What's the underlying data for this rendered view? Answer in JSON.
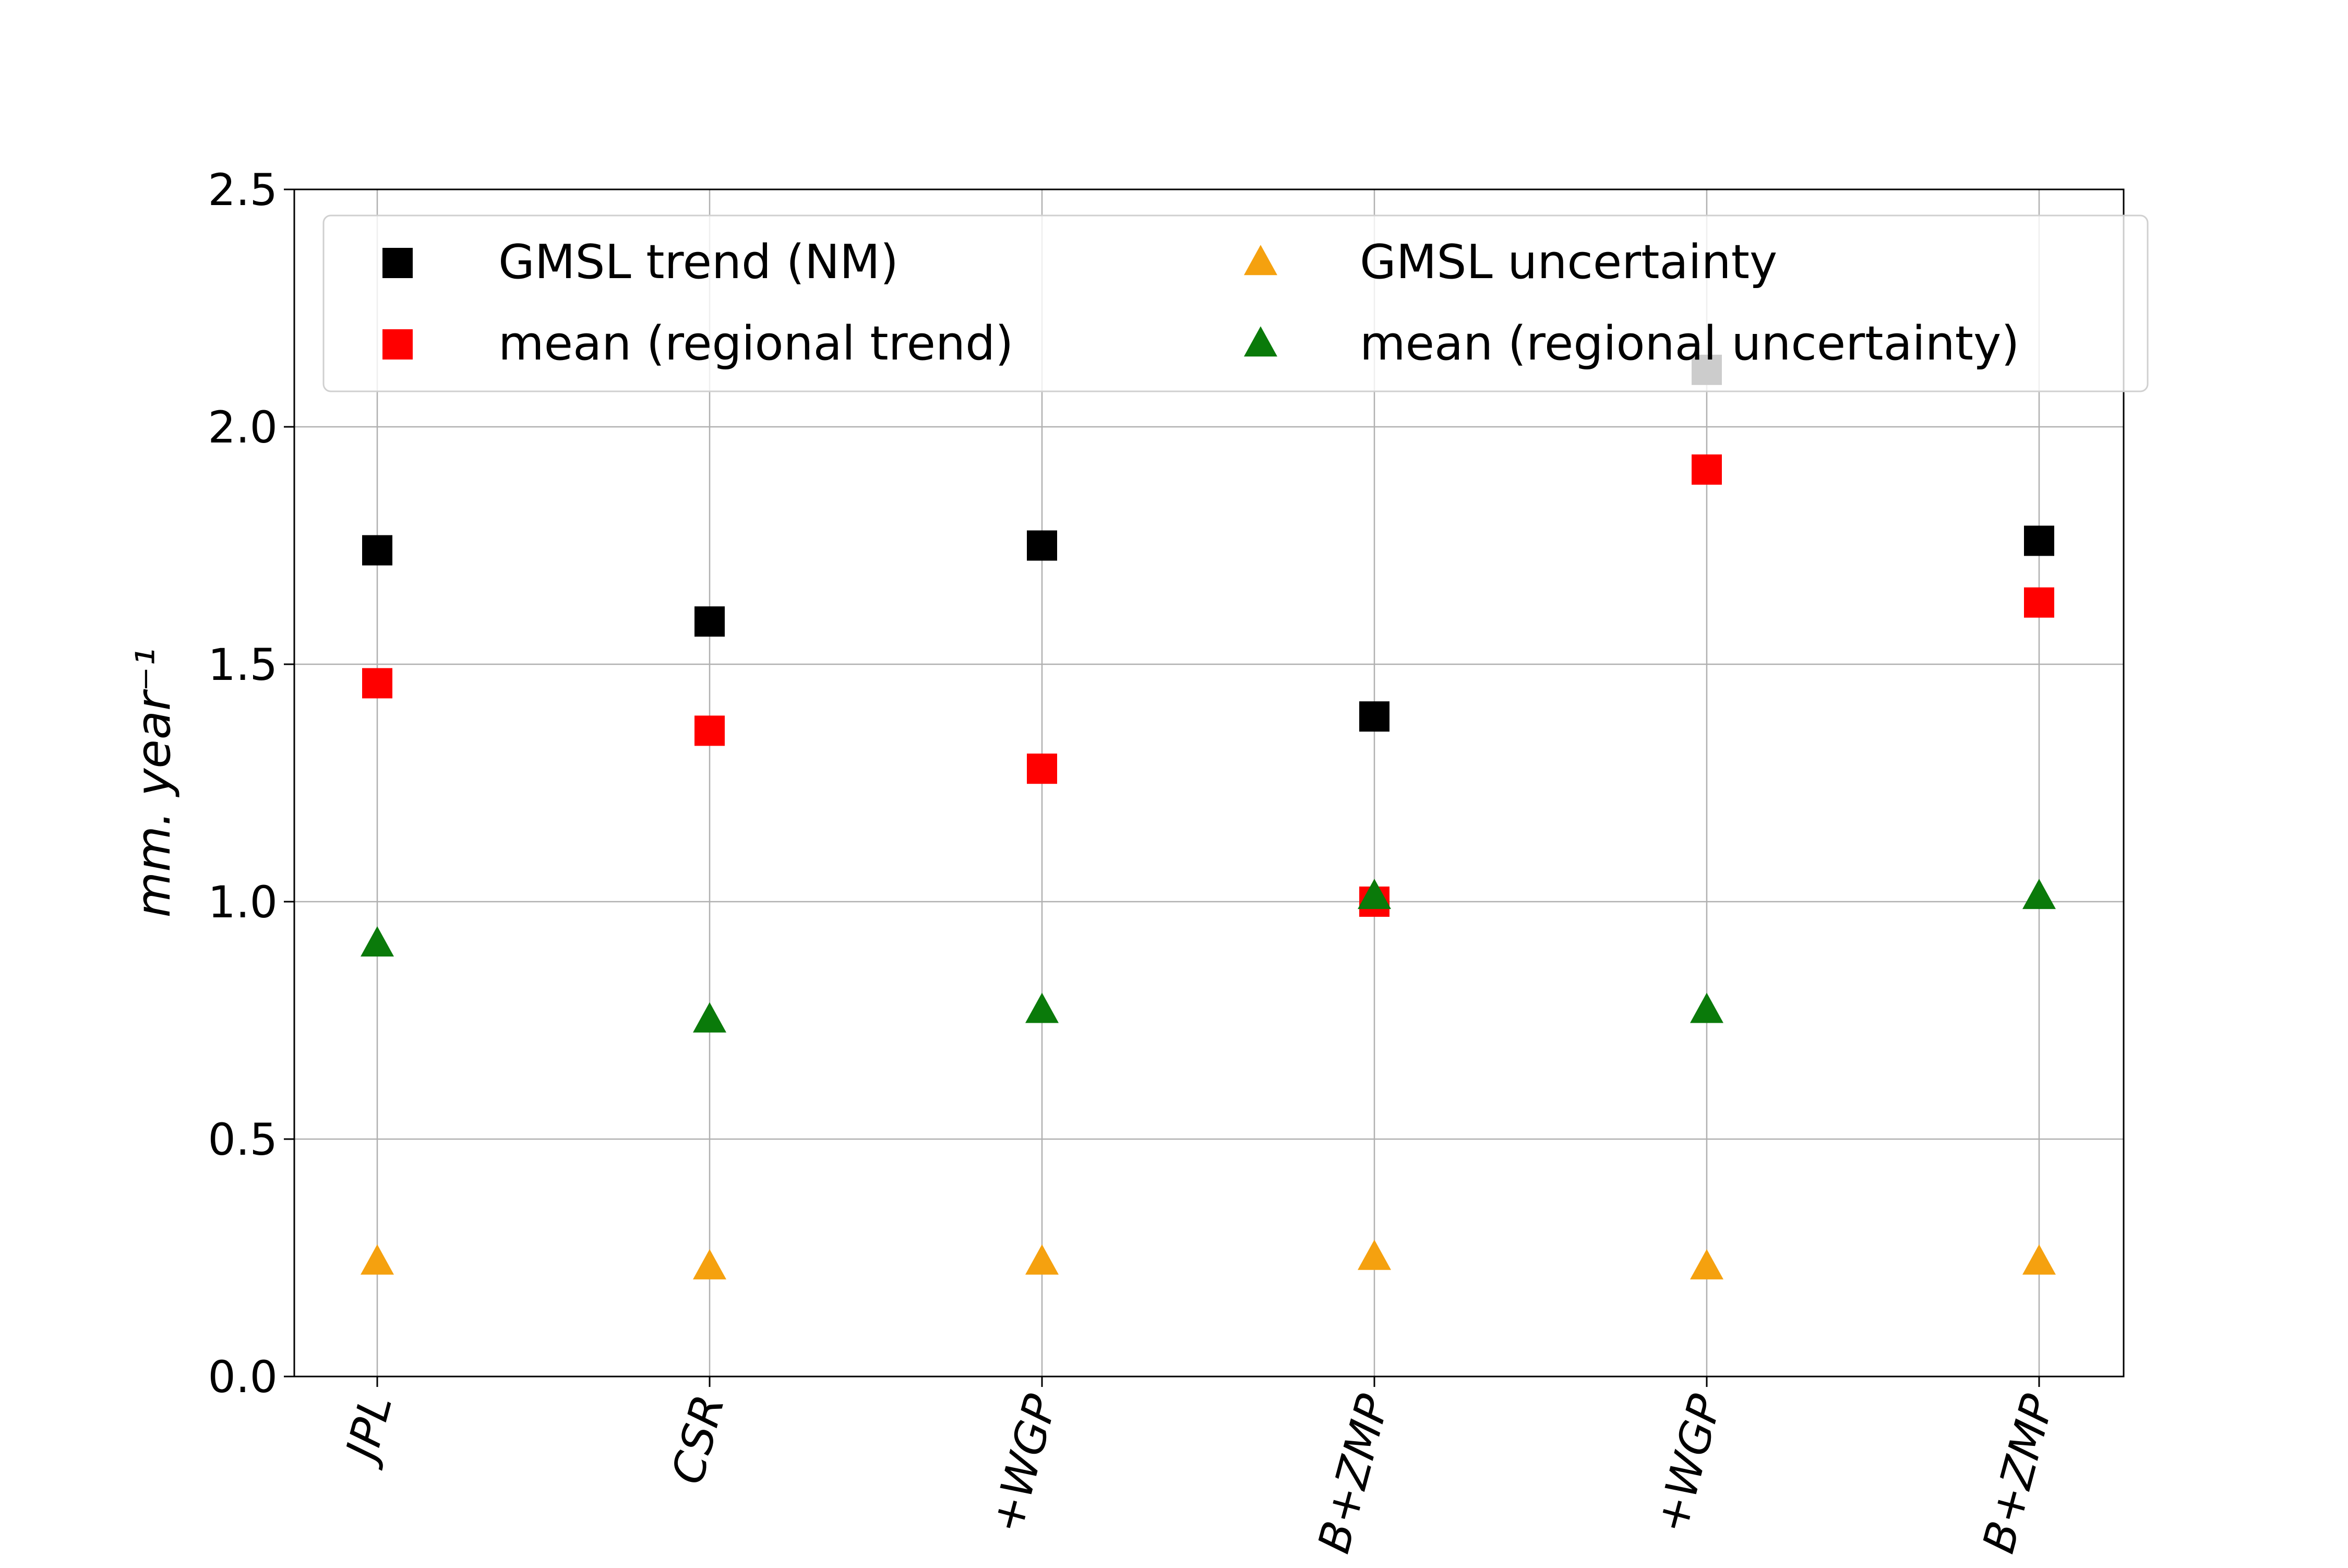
{
  "chart_data": {
    "type": "scatter",
    "categories": [
      "JPL",
      "CSR",
      "+WGP",
      "B+ZMP",
      "+WGP",
      "B+ZMP"
    ],
    "ylabel": "mm. year⁻¹",
    "ylim": [
      0,
      2.5
    ],
    "yticks": [
      "0.0",
      "0.5",
      "1.0",
      "1.5",
      "2.0",
      "2.5"
    ],
    "grid": true,
    "legend_position": "top",
    "series": [
      {
        "name": "GMSL trend (NM)",
        "marker": "square",
        "color": "#000000",
        "values": [
          1.74,
          1.59,
          1.75,
          1.39,
          2.12,
          1.76
        ]
      },
      {
        "name": "mean (regional trend)",
        "marker": "square",
        "color": "#ff0000",
        "values": [
          1.46,
          1.36,
          1.28,
          1.0,
          1.91,
          1.63
        ]
      },
      {
        "name": "GMSL uncertainty",
        "marker": "triangle",
        "color": "#f5a10f",
        "values": [
          0.24,
          0.23,
          0.24,
          0.25,
          0.23,
          0.24
        ]
      },
      {
        "name": "mean (regional uncertainty)",
        "marker": "triangle",
        "color": "#0a7a0a",
        "values": [
          0.91,
          0.75,
          0.77,
          1.01,
          0.77,
          1.01
        ]
      }
    ]
  }
}
